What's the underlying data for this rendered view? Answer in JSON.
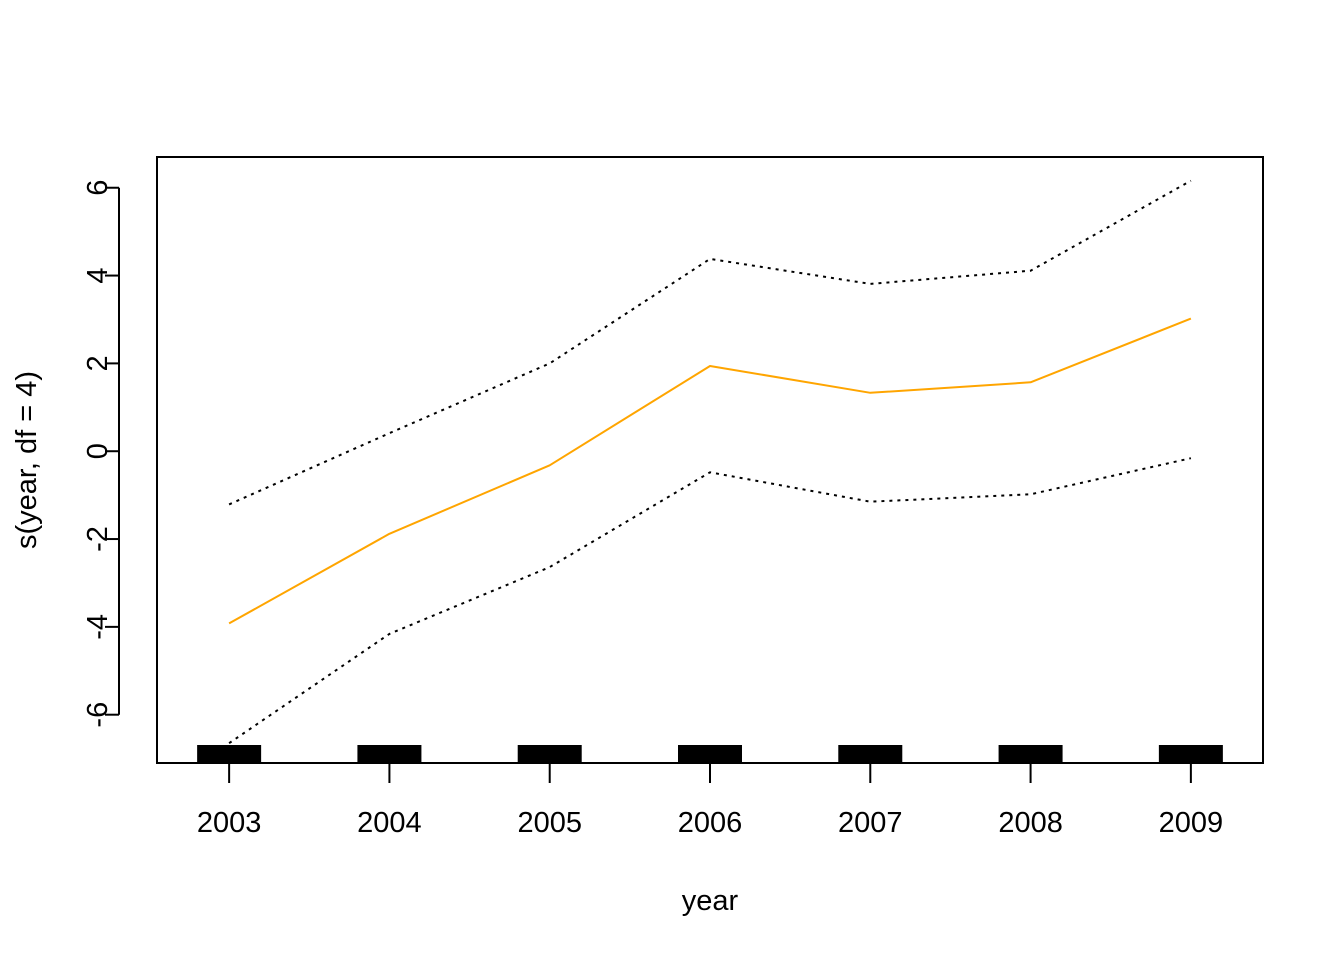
{
  "chart_data": {
    "type": "line",
    "title": "",
    "xlabel": "year",
    "ylabel": "s(year, df = 4)",
    "x": [
      2003,
      2004,
      2005,
      2006,
      2007,
      2008,
      2009
    ],
    "xlim": [
      2002.55,
      2009.45
    ],
    "ylim": [
      -7.1,
      6.7
    ],
    "xticks": [
      "2003",
      "2004",
      "2005",
      "2006",
      "2007",
      "2008",
      "2009"
    ],
    "yticks": [
      "-6",
      "-4",
      "-2",
      "0",
      "2",
      "4",
      "6"
    ],
    "series": [
      {
        "values": [
          -3.92,
          -1.88,
          -0.32,
          1.94,
          1.33,
          1.57,
          3.02
        ],
        "color": "#FFA500",
        "style": "solid"
      },
      {
        "values": [
          -1.21,
          0.41,
          2.0,
          4.38,
          3.81,
          4.11,
          6.16
        ],
        "color": "#000000",
        "style": "dotted"
      },
      {
        "values": [
          -6.65,
          -4.16,
          -2.64,
          -0.48,
          -1.15,
          -0.98,
          -0.16
        ],
        "color": "#000000",
        "style": "dotted"
      }
    ],
    "rug": [
      2003,
      2004,
      2005,
      2006,
      2007,
      2008,
      2009
    ],
    "grid": false,
    "legend": "none"
  }
}
